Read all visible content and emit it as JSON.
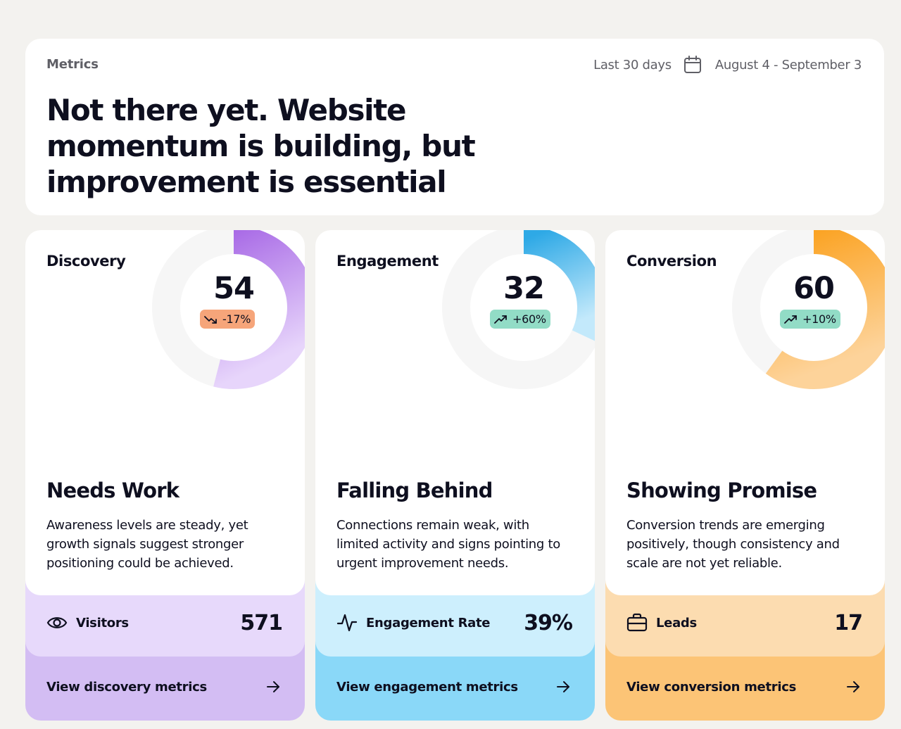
{
  "header": {
    "eyebrow": "Metrics",
    "range_label": "Last 30 days",
    "range_icon": "calendar-icon",
    "date_range": "August 4 - September 3",
    "headline": "Not there yet. Website momentum is building, but improvement is essential"
  },
  "cards": [
    {
      "title": "Discovery",
      "score": "54",
      "score_fraction": 0.54,
      "trend": "-17%",
      "trend_direction": "down",
      "trend_icon": "trending-down-icon",
      "status": "Needs Work",
      "description": "Awareness levels are steady, yet growth signals suggest stronger positioning could be achieved.",
      "metric_icon": "eye-icon",
      "metric_label": "Visitors",
      "metric_value": "571",
      "link_label": "View discovery metrics",
      "colors": {
        "arc_start": "#a96be6",
        "arc_end": "#e7d5fb",
        "badge": "#f6a57a",
        "metric_bg": "#e7d9fb",
        "footer_bg": "#d3bdf3"
      }
    },
    {
      "title": "Engagement",
      "score": "32",
      "score_fraction": 0.32,
      "trend": "+60%",
      "trend_direction": "up",
      "trend_icon": "trending-up-icon",
      "status": "Falling Behind",
      "description": "Connections remain weak, with limited activity and signs pointing to urgent improvement needs.",
      "metric_icon": "activity-pulse-icon",
      "metric_label": "Engagement Rate",
      "metric_value": "39%",
      "link_label": "View engagement metrics",
      "colors": {
        "arc_start": "#2ea9e6",
        "arc_end": "#c3e9fb",
        "badge": "#92dcc6",
        "metric_bg": "#cdeffd",
        "footer_bg": "#8ad8f8"
      }
    },
    {
      "title": "Conversion",
      "score": "60",
      "score_fraction": 0.6,
      "trend": "+10%",
      "trend_direction": "up",
      "trend_icon": "trending-up-icon",
      "status": "Showing Promise",
      "description": "Conversion trends are emerging positively, though consistency and scale are not yet reliable.",
      "metric_icon": "briefcase-icon",
      "metric_label": "Leads",
      "metric_value": "17",
      "link_label": "View conversion metrics",
      "colors": {
        "arc_start": "#fba11e",
        "arc_end": "#fdd39a",
        "badge": "#92dcc6",
        "metric_bg": "#fcdcb0",
        "footer_bg": "#fcc476"
      }
    }
  ]
}
